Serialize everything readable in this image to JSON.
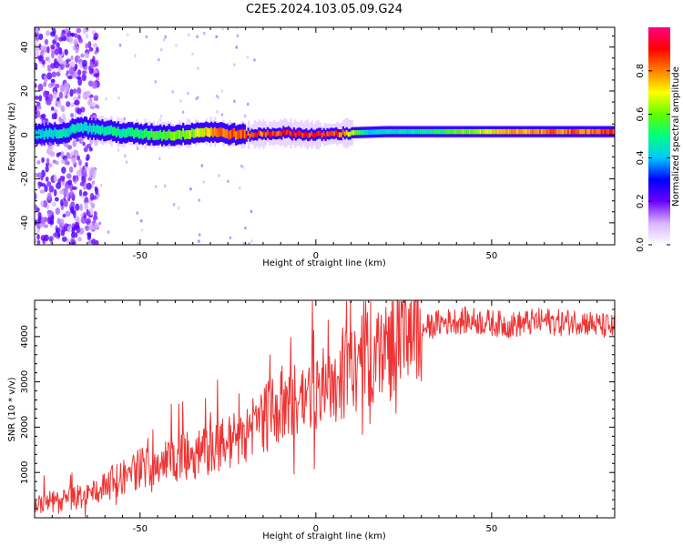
{
  "figure_title": "C2E5.2024.103.05.09.G24",
  "chart_data": [
    {
      "type": "heatmap",
      "xlabel": "Height of straight line (km)",
      "ylabel": "Frequency (Hz)",
      "xlim": [
        -80,
        85
      ],
      "ylim": [
        -50,
        49
      ],
      "xticks": [
        -50,
        0,
        50
      ],
      "yticks": [
        -40,
        -20,
        0,
        20,
        40
      ],
      "colorbar": {
        "label": "Normalized spectral amplitude",
        "range": [
          0.0,
          1.0
        ],
        "ticks": [
          0.0,
          0.2,
          0.4,
          0.6,
          0.8
        ],
        "tick_labels": [
          "0.0",
          "0.2",
          "0.4",
          "0.6",
          "0.8"
        ],
        "colors": [
          "#ffffff",
          "#d8b4ff",
          "#6b00ff",
          "#0000ff",
          "#00c8ff",
          "#00ff80",
          "#60ff00",
          "#ffff00",
          "#ff8000",
          "#ff0000",
          "#ff0080"
        ]
      },
      "ridge_frequency_hz": [
        [
          -80,
          0.5
        ],
        [
          -75,
          0.5
        ],
        [
          -70,
          2
        ],
        [
          -68,
          4
        ],
        [
          -65,
          3
        ],
        [
          -60,
          2
        ],
        [
          -55,
          1
        ],
        [
          -50,
          0.5
        ],
        [
          -45,
          0
        ],
        [
          -40,
          0
        ],
        [
          -35,
          1
        ],
        [
          -30,
          1.5
        ],
        [
          -25,
          0.5
        ],
        [
          -20,
          0
        ],
        [
          -10,
          1
        ],
        [
          0,
          0
        ],
        [
          10,
          1
        ],
        [
          20,
          1.5
        ],
        [
          40,
          1.5
        ],
        [
          60,
          1.5
        ],
        [
          85,
          1.5
        ]
      ],
      "ridge_amplitude": [
        [
          -80,
          0.45
        ],
        [
          -65,
          0.5
        ],
        [
          -50,
          0.55
        ],
        [
          -35,
          0.7
        ],
        [
          -25,
          0.9
        ],
        [
          -15,
          0.9
        ],
        [
          -5,
          0.95
        ],
        [
          5,
          0.95
        ],
        [
          15,
          0.45
        ],
        [
          30,
          0.5
        ],
        [
          45,
          0.7
        ],
        [
          60,
          0.85
        ],
        [
          85,
          0.9
        ]
      ]
    },
    {
      "type": "line",
      "xlabel": "Height of straight line (km)",
      "ylabel": "SNR (10 * v/v)",
      "xlim": [
        -80,
        85
      ],
      "ylim": [
        0,
        4800
      ],
      "xticks": [
        -50,
        0,
        50
      ],
      "yticks": [
        1000,
        2000,
        3000,
        4000
      ],
      "line_color": "#ee3333",
      "series": [
        {
          "x": [
            -80,
            -75,
            -70,
            -65,
            -60,
            -55,
            -50,
            -45,
            -40,
            -35,
            -30,
            -25,
            -20,
            -15,
            -10,
            -5,
            0,
            5,
            10,
            15,
            20,
            25,
            30,
            35,
            40,
            45,
            50,
            55,
            60,
            65,
            70,
            75,
            80,
            85
          ],
          "values": [
            300,
            350,
            400,
            500,
            700,
            900,
            1100,
            1200,
            1300,
            1400,
            1500,
            1650,
            1900,
            2200,
            2500,
            2600,
            2800,
            3000,
            3300,
            3500,
            3700,
            3950,
            4150,
            4300,
            4350,
            4350,
            4300,
            4250,
            4300,
            4350,
            4300,
            4350,
            4250,
            4200
          ]
        }
      ]
    }
  ]
}
